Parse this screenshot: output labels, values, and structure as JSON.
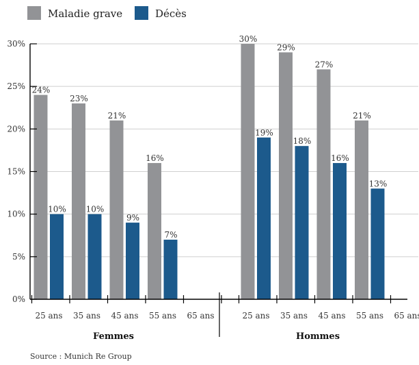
{
  "chart_data": {
    "type": "bar",
    "legend": {
      "placement": "top-left",
      "entries": [
        {
          "name": "Maladie grave",
          "color": "#929396"
        },
        {
          "name": "Décès",
          "color": "#1c5a8c"
        }
      ]
    },
    "ylim": [
      0,
      30
    ],
    "yticks": [
      "0%",
      "5%",
      "10%",
      "15%",
      "20%",
      "25%",
      "30%"
    ],
    "ytick_values": [
      0,
      5,
      10,
      15,
      20,
      25,
      30
    ],
    "grid": true,
    "categories": [
      "25 ans",
      "35 ans",
      "45 ans",
      "55 ans",
      "65 ans"
    ],
    "groups": [
      {
        "name": "Femmes",
        "series": [
          {
            "name": "Maladie grave",
            "values": [
              24,
              23,
              21,
              16,
              null
            ],
            "labels": [
              "24%",
              "23%",
              "21%",
              "16%",
              ""
            ]
          },
          {
            "name": "Décès",
            "values": [
              10,
              10,
              9,
              7,
              null
            ],
            "labels": [
              "10%",
              "10%",
              "9%",
              "7%",
              ""
            ]
          }
        ]
      },
      {
        "name": "Hommes",
        "series": [
          {
            "name": "Maladie grave",
            "values": [
              30,
              29,
              27,
              21,
              null
            ],
            "labels": [
              "30%",
              "29%",
              "27%",
              "21%",
              ""
            ]
          },
          {
            "name": "Décès",
            "values": [
              19,
              18,
              16,
              13,
              null
            ],
            "labels": [
              "19%",
              "18%",
              "16%",
              "13%",
              ""
            ]
          }
        ]
      }
    ]
  },
  "source": "Source : Munich Re Group"
}
